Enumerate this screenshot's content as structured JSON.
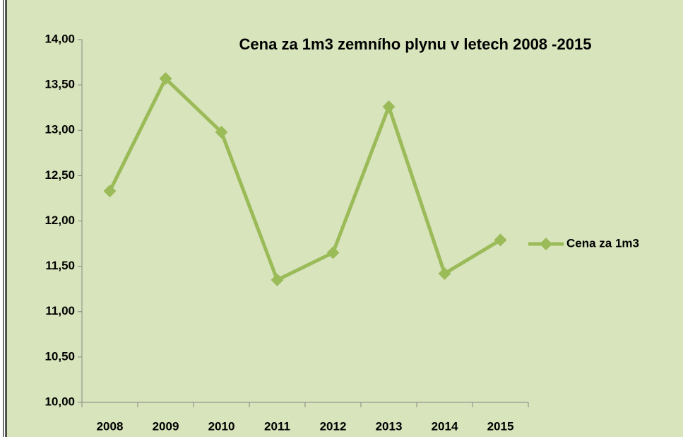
{
  "chart_data": {
    "type": "line",
    "title": "Cena za 1m3 zemního plynu v letech 2008 -2015",
    "categories": [
      "2008",
      "2009",
      "2010",
      "2011",
      "2012",
      "2013",
      "2014",
      "2015"
    ],
    "series": [
      {
        "name": "Cena za 1m3",
        "color": "#9bbb59",
        "values": [
          12.33,
          13.57,
          12.98,
          11.35,
          11.65,
          13.26,
          11.42,
          11.79
        ]
      }
    ],
    "ylim": [
      10,
      14
    ],
    "yticks": [
      {
        "value": 10,
        "label": "10,00"
      },
      {
        "value": 10.5,
        "label": "10,50"
      },
      {
        "value": 11,
        "label": "11,00"
      },
      {
        "value": 11.5,
        "label": "11,50"
      },
      {
        "value": 12,
        "label": "12,00"
      },
      {
        "value": 12.5,
        "label": "12,50"
      },
      {
        "value": 13,
        "label": "13,00"
      },
      {
        "value": 13.5,
        "label": "13,50"
      },
      {
        "value": 14,
        "label": "14,00"
      }
    ],
    "grid": false,
    "legend": "right"
  }
}
